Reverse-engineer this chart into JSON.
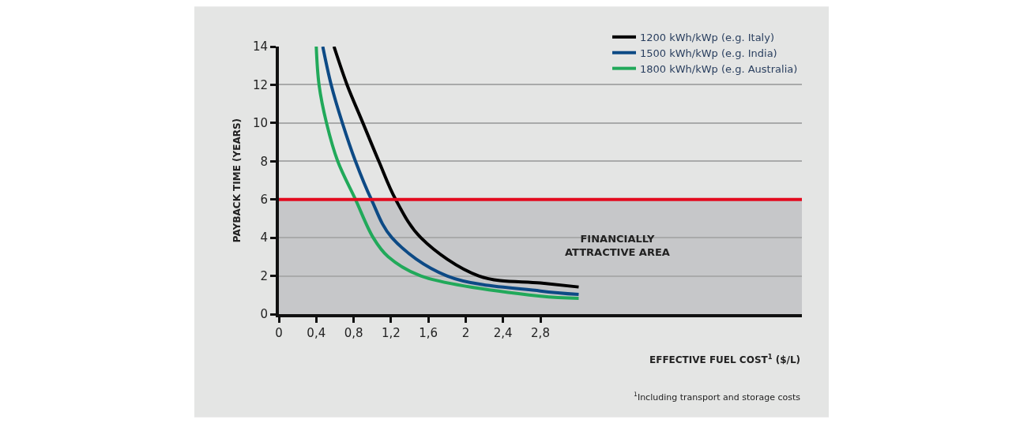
{
  "chart_data": {
    "type": "line",
    "xlabel": "EFFECTIVE FUEL COST$^{1}$ ($/L)",
    "ylabel": "PAYBACK TIME (YEARS)",
    "xlim": [
      0,
      5.6
    ],
    "ylim": [
      0,
      14
    ],
    "xticks": [
      0,
      {
        "value": 0.4,
        "label": "0,4"
      },
      {
        "value": 0.8,
        "label": "0,8"
      },
      {
        "value": 1.2,
        "label": "1,2"
      },
      {
        "value": 1.6,
        "label": "1,6"
      },
      2,
      {
        "value": 2.4,
        "label": "2,4"
      },
      {
        "value": 2.8,
        "label": "2,8"
      }
    ],
    "yticks": [
      0,
      2,
      4,
      6,
      8,
      10,
      12,
      14
    ],
    "grid": "y",
    "legend": "top right",
    "marker": "none",
    "line_style": "solid",
    "series": [
      {
        "name": "1200 kWh/kWp (e.g. Italy)",
        "color": "#000000",
        "x": [
          0.59,
          0.73,
          0.9,
          1.07,
          1.25,
          1.52,
          2.14,
          2.8,
          3.21
        ],
        "values": [
          14,
          12,
          10,
          8,
          6,
          4,
          2,
          1.63,
          1.42
        ]
      },
      {
        "name": "1500 kWh/kWp (e.g. India)",
        "color": "#0d4a85",
        "x": [
          0.47,
          0.56,
          0.68,
          0.82,
          0.99,
          1.21,
          1.8,
          2.8,
          3.21
        ],
        "values": [
          14,
          12,
          10,
          8,
          6,
          4,
          2,
          1.21,
          1.03
        ]
      },
      {
        "name": "1800 kWh/kWp (e.g. Australia)",
        "color": "#21a95a",
        "x": [
          0.4,
          0.43,
          0.51,
          0.63,
          0.82,
          1.01,
          1.17,
          1.52,
          2.8,
          3.21
        ],
        "values": [
          14,
          12,
          10,
          8,
          6,
          4,
          3,
          2,
          0.94,
          0.83
        ]
      }
    ],
    "ref_lines": [
      {
        "axis": "y",
        "value": 6,
        "color": "#e30a1e"
      }
    ],
    "bands": [
      {
        "axis": "y",
        "from": 0,
        "to": 6,
        "label": "FINANCIALLY\nATTRACTIVE AREA",
        "color": "#c6c7c9"
      }
    ],
    "annotations": [
      "$^{1}$Including transport and storage costs"
    ]
  }
}
